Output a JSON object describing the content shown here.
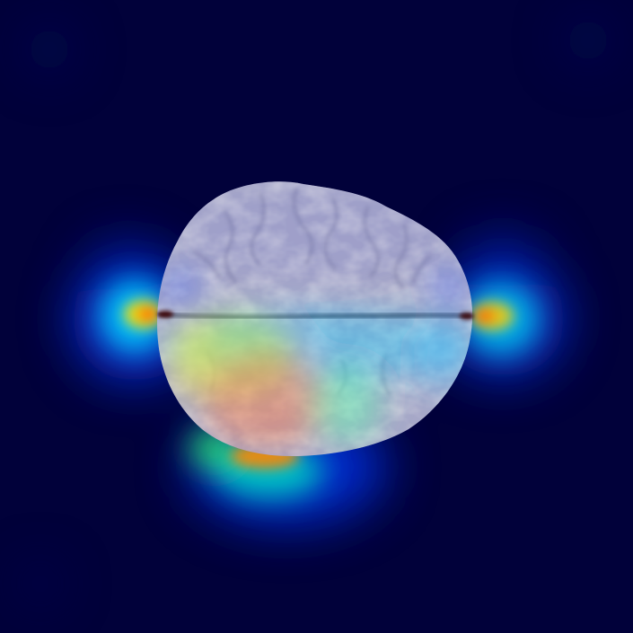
{
  "image": {
    "kind": "brain-mri-slice-with-heatmap-overlay",
    "background_color": "#01013a",
    "colormap": [
      "#00007f",
      "#0000ff",
      "#00ffff",
      "#ffff00",
      "#ff0000",
      "#7f0000"
    ]
  }
}
